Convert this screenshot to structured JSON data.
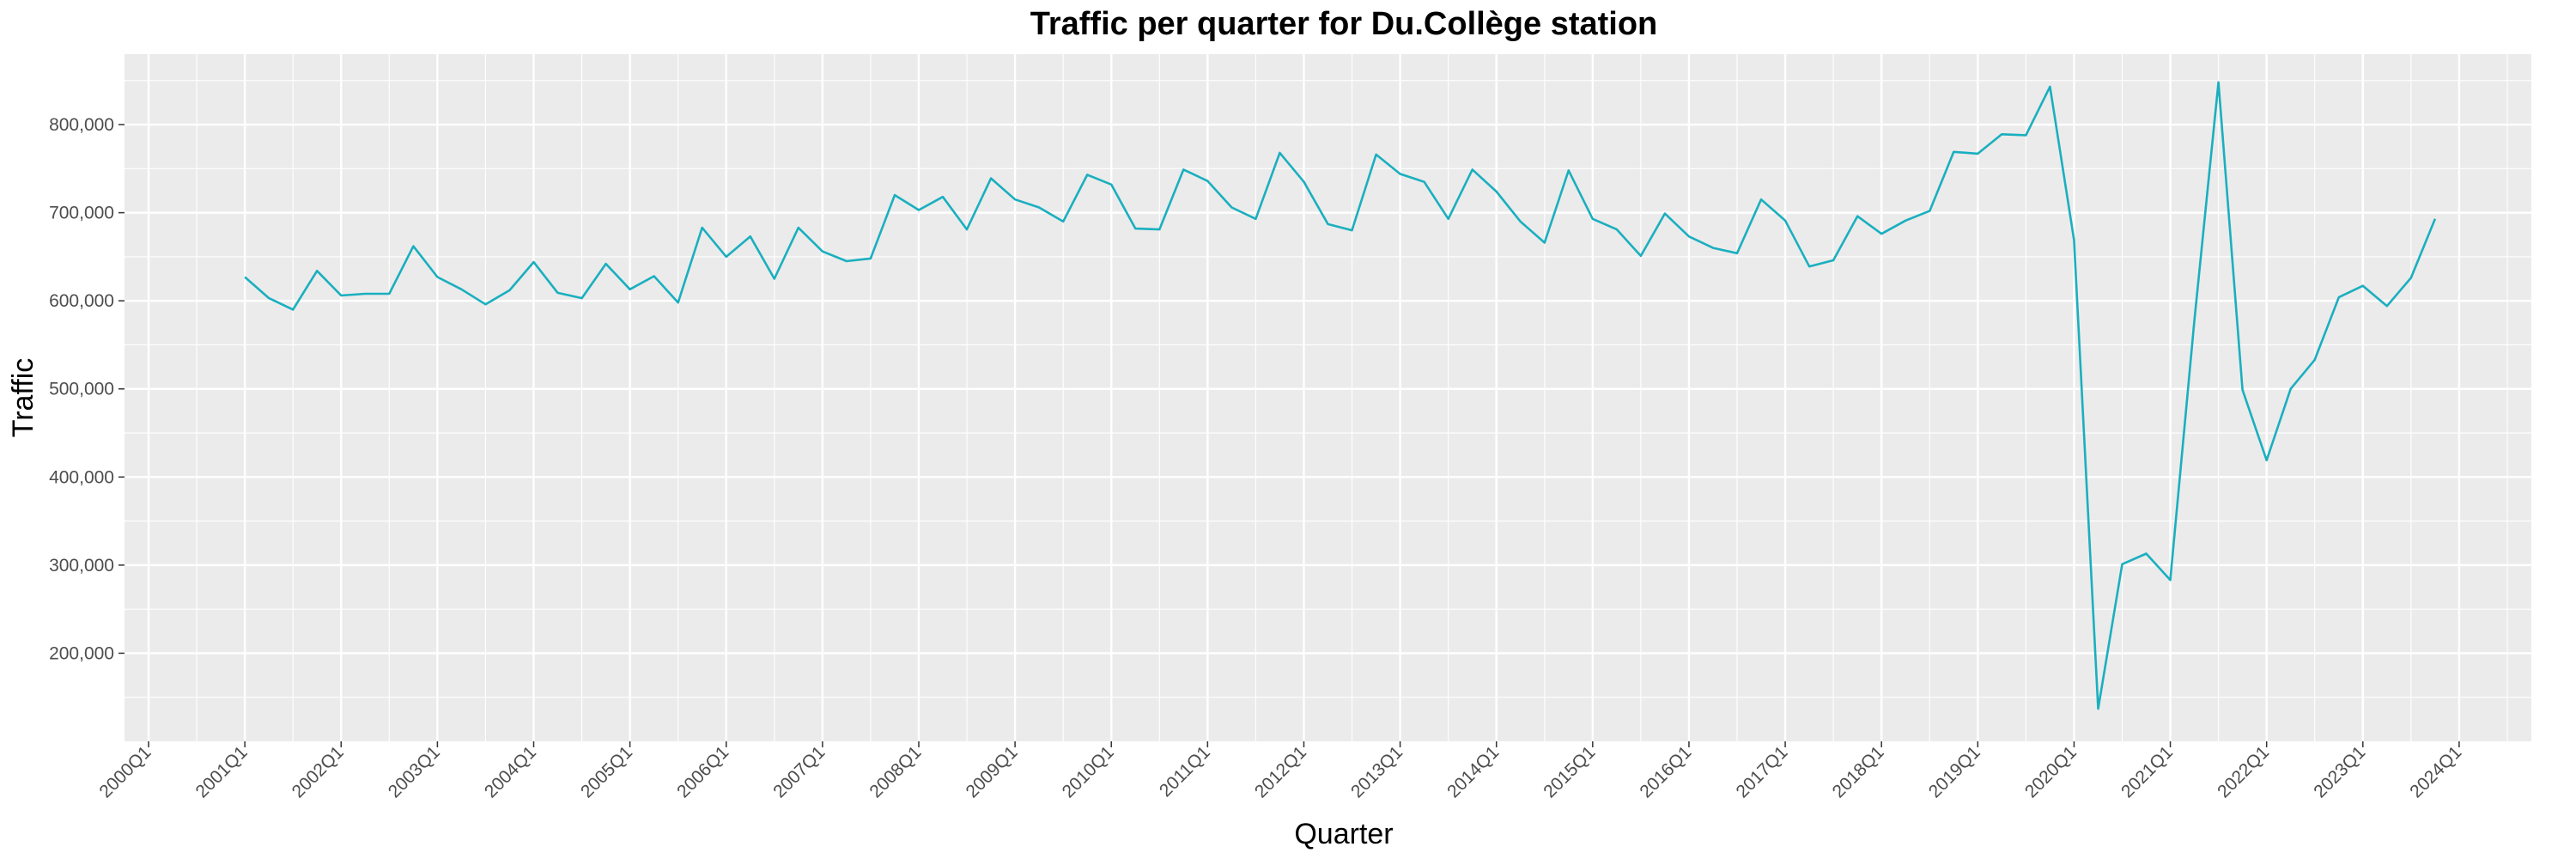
{
  "chart_data": {
    "type": "line",
    "title": "Traffic per quarter for Du.Collège station",
    "xlabel": "Quarter",
    "ylabel": "Traffic",
    "x_tick_labels": [
      "2000Q1",
      "2001Q1",
      "2002Q1",
      "2003Q1",
      "2004Q1",
      "2005Q1",
      "2006Q1",
      "2007Q1",
      "2008Q1",
      "2009Q1",
      "2010Q1",
      "2011Q1",
      "2012Q1",
      "2013Q1",
      "2014Q1",
      "2015Q1",
      "2016Q1",
      "2017Q1",
      "2018Q1",
      "2019Q1",
      "2020Q1",
      "2021Q1",
      "2022Q1",
      "2023Q1",
      "2024Q1"
    ],
    "y_ticks": [
      200000,
      300000,
      400000,
      500000,
      600000,
      700000,
      800000
    ],
    "y_tick_labels": [
      "200,000",
      "300,000",
      "400,000",
      "500,000",
      "600,000",
      "700,000",
      "800,000"
    ],
    "xlim": [
      "1999Q4",
      "2024Q4"
    ],
    "ylim": [
      100000,
      880000
    ],
    "grid": true,
    "line_color": "#1aafbf",
    "background_color": "#ebebeb",
    "series": [
      {
        "start_quarter": "2001Q1",
        "x": [
          "2001Q1",
          "2001Q2",
          "2001Q3",
          "2001Q4",
          "2002Q1",
          "2002Q2",
          "2002Q3",
          "2002Q4",
          "2003Q1",
          "2003Q2",
          "2003Q3",
          "2003Q4",
          "2004Q1",
          "2004Q2",
          "2004Q3",
          "2004Q4",
          "2005Q1",
          "2005Q2",
          "2005Q3",
          "2005Q4",
          "2006Q1",
          "2006Q2",
          "2006Q3",
          "2006Q4",
          "2007Q1",
          "2007Q2",
          "2007Q3",
          "2007Q4",
          "2008Q1",
          "2008Q2",
          "2008Q3",
          "2008Q4",
          "2009Q1",
          "2009Q2",
          "2009Q3",
          "2009Q4",
          "2010Q1",
          "2010Q2",
          "2010Q3",
          "2010Q4",
          "2011Q1",
          "2011Q2",
          "2011Q3",
          "2011Q4",
          "2012Q1",
          "2012Q2",
          "2012Q3",
          "2012Q4",
          "2013Q1",
          "2013Q2",
          "2013Q3",
          "2013Q4",
          "2014Q1",
          "2014Q2",
          "2014Q3",
          "2014Q4",
          "2015Q1",
          "2015Q2",
          "2015Q3",
          "2015Q4",
          "2016Q1",
          "2016Q2",
          "2016Q3",
          "2016Q4",
          "2017Q1",
          "2017Q2",
          "2017Q3",
          "2017Q4",
          "2018Q1",
          "2018Q2",
          "2018Q3",
          "2018Q4",
          "2019Q1",
          "2019Q2",
          "2019Q3",
          "2019Q4",
          "2020Q1",
          "2020Q2",
          "2020Q3",
          "2020Q4",
          "2021Q1",
          "2021Q2",
          "2021Q3",
          "2021Q4",
          "2022Q1",
          "2022Q2",
          "2022Q3",
          "2022Q4",
          "2023Q1",
          "2023Q2",
          "2023Q3",
          "2023Q4"
        ],
        "values": [
          627000,
          603000,
          590000,
          634000,
          606000,
          608000,
          608000,
          662000,
          627000,
          613000,
          596000,
          612000,
          644000,
          609000,
          603000,
          642000,
          613000,
          628000,
          598000,
          683000,
          650000,
          673000,
          625000,
          683000,
          656000,
          645000,
          648000,
          720000,
          703000,
          718000,
          681000,
          739000,
          715000,
          706000,
          690000,
          743000,
          732000,
          682000,
          681000,
          749000,
          736000,
          706000,
          693000,
          768000,
          735000,
          687000,
          680000,
          766000,
          744000,
          735000,
          693000,
          749000,
          724000,
          690000,
          666000,
          748000,
          693000,
          681000,
          651000,
          699000,
          673000,
          660000,
          654000,
          715000,
          691000,
          639000,
          646000,
          696000,
          676000,
          691000,
          702000,
          769000,
          767000,
          789000,
          788000,
          843000,
          669000,
          137000,
          301000,
          313000,
          283000,
          578000,
          848000,
          499000,
          419000,
          500000,
          533000,
          604000,
          617000,
          594000,
          626000,
          693000
        ]
      }
    ]
  }
}
